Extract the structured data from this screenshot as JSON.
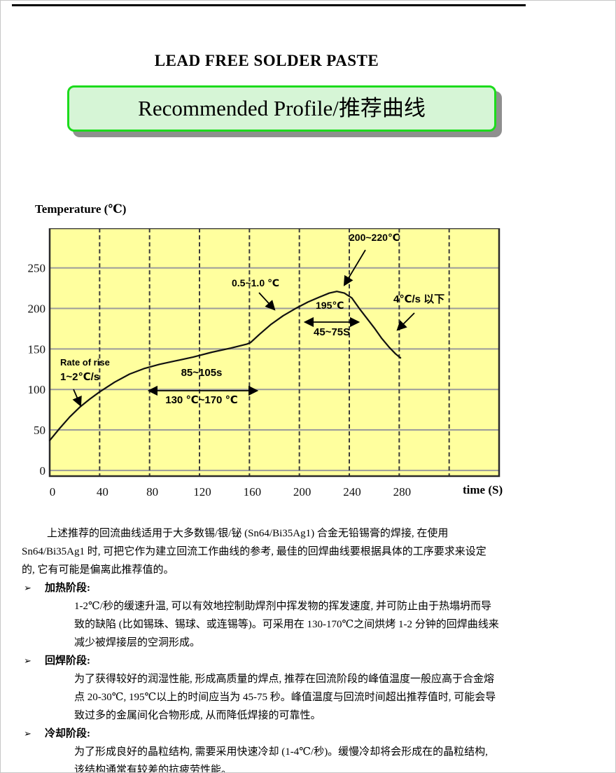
{
  "page": {
    "doc_title": "LEAD FREE SOLDER PASTE",
    "banner": "Recommended Profile/推荐曲线"
  },
  "chart_data": {
    "type": "line",
    "ylabel": "Temperature (℃)",
    "xlabel": "time (S)",
    "xlim": [
      0,
      360
    ],
    "ylim": [
      -7,
      299
    ],
    "x_ticks": [
      0,
      40,
      80,
      120,
      160,
      200,
      240,
      280
    ],
    "y_ticks": [
      0,
      50,
      100,
      150,
      200,
      250
    ],
    "x_grid_step": 40,
    "grid": true,
    "plot_bg": "#FFFF9E",
    "curve_color": "#111111",
    "series": [
      {
        "name": "reflow-temperature-profile",
        "points": [
          [
            0,
            37
          ],
          [
            8,
            52
          ],
          [
            16,
            66
          ],
          [
            24,
            78
          ],
          [
            32,
            88
          ],
          [
            40,
            97
          ],
          [
            52,
            109
          ],
          [
            64,
            119
          ],
          [
            76,
            126
          ],
          [
            88,
            131
          ],
          [
            100,
            135
          ],
          [
            115,
            140
          ],
          [
            130,
            146
          ],
          [
            145,
            151
          ],
          [
            158,
            156
          ],
          [
            161,
            158
          ],
          [
            168,
            168
          ],
          [
            177,
            180
          ],
          [
            187,
            191
          ],
          [
            197,
            200
          ],
          [
            207,
            208
          ],
          [
            216,
            214
          ],
          [
            224,
            219
          ],
          [
            230,
            221
          ],
          [
            236,
            219
          ],
          [
            242,
            213
          ],
          [
            248,
            200
          ],
          [
            254,
            188
          ],
          [
            260,
            176
          ],
          [
            266,
            163
          ],
          [
            272,
            152
          ],
          [
            277,
            144
          ],
          [
            281,
            139
          ]
        ]
      }
    ],
    "annotations": [
      {
        "id": "rate-of-rise-label",
        "text": "Rate of rise"
      },
      {
        "id": "rate-of-rise-value",
        "text": "1~2℃/s"
      },
      {
        "id": "soak-time-range",
        "text": "85~105s"
      },
      {
        "id": "soak-temp-range",
        "text": "130 ℃~170 ℃"
      },
      {
        "id": "second-ramp-rate",
        "text": "0.5~1.0 ℃"
      },
      {
        "id": "threshold-temp",
        "text": "195℃"
      },
      {
        "id": "time-above-threshold",
        "text": "45~75S"
      },
      {
        "id": "peak-temp-range",
        "text": "200~220℃"
      },
      {
        "id": "cooling-rate",
        "text": "4℃/s 以下"
      }
    ]
  },
  "body": {
    "intro_lines": [
      "上述推荐的回流曲线适用于大多数锡/银/铋 (Sn64/Bi35Ag1) 合金无铅锡膏的焊接, 在使用",
      "Sn64/Bi35Ag1 时, 可把它作为建立回流工作曲线的参考, 最佳的回焊曲线要根据具体的工序要求来设定",
      "的, 它有可能是偏离此推荐值的。"
    ],
    "sections": [
      {
        "marker": "➢",
        "heading": "加热阶段:",
        "lines": [
          "1-2℃/秒的缓速升温, 可以有效地控制助焊剂中挥发物的挥发速度, 并可防止由于热塌坍而导",
          "致的缺陷 (比如锡珠、锡球、或连锡等)。可采用在 130-170℃之间烘烤 1-2 分钟的回焊曲线来",
          "减少被焊接层的空洞形成。"
        ]
      },
      {
        "marker": "➢",
        "heading": "回焊阶段:",
        "lines": [
          "为了获得较好的润湿性能, 形成高质量的焊点, 推荐在回流阶段的峰值温度一般应高于合金熔",
          "点 20-30℃, 195℃以上的时间应当为 45-75 秒。峰值温度与回流时间超出推荐值时, 可能会导",
          "致过多的金属间化合物形成, 从而降低焊接的可靠性。"
        ]
      },
      {
        "marker": "➢",
        "heading": "冷却阶段:",
        "lines": [
          "为了形成良好的晶粒结构, 需要采用快速冷却 (1-4℃/秒)。缓慢冷却将会形成在的晶粒结构,",
          "该结构通常有较差的抗疲劳性能。"
        ]
      }
    ]
  }
}
